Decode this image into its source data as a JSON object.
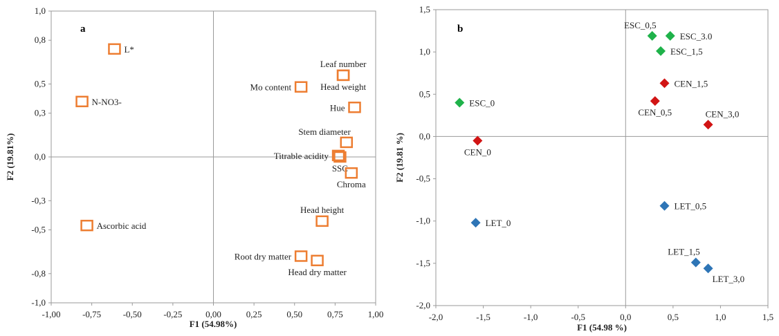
{
  "chart_data": [
    {
      "type": "scatter",
      "panel": "a",
      "xlabel": "F1 (54.98%)",
      "ylabel": "F2 (19.81%)",
      "xlim": [
        -1.0,
        1.0
      ],
      "ylim": [
        -1.0,
        1.0
      ],
      "x_ticks": [
        -1.0,
        -0.75,
        -0.5,
        -0.25,
        0.0,
        0.25,
        0.5,
        0.75,
        1.0
      ],
      "x_tick_labels": [
        "-1,00",
        "-0,75",
        "-0,50",
        "-0,25",
        "0,00",
        "0,25",
        "0,50",
        "0,75",
        "1,00"
      ],
      "y_ticks": [
        -1.0,
        -0.8,
        -0.5,
        -0.3,
        0.0,
        0.3,
        0.5,
        0.8,
        1.0
      ],
      "y_tick_labels": [
        "-1,0",
        "-0,8",
        "-0,5",
        "-0,3",
        "0,0",
        "0,3",
        "0,5",
        "0,8",
        "1,0"
      ],
      "marker": "open-square",
      "marker_color": "#ED7D31",
      "points": [
        {
          "label": "L*",
          "x": -0.61,
          "y": 0.74,
          "label_side": "right"
        },
        {
          "label": "N-NO3-",
          "x": -0.81,
          "y": 0.38,
          "label_side": "right"
        },
        {
          "label": "Ascorbic acid",
          "x": -0.78,
          "y": -0.47,
          "label_side": "right"
        },
        {
          "label": "Leaf number",
          "x": 0.8,
          "y": 0.56,
          "label_side": "above"
        },
        {
          "label": "Head weight",
          "x": 0.8,
          "y": 0.56,
          "label_side": "below"
        },
        {
          "label": "Mo content",
          "x": 0.54,
          "y": 0.48,
          "label_side": "left"
        },
        {
          "label": "Hue",
          "x": 0.87,
          "y": 0.34,
          "label_side": "left"
        },
        {
          "label": "Stem diameter",
          "x": 0.82,
          "y": 0.1,
          "label_side": "above-left"
        },
        {
          "label": "Titrable acidity",
          "x": 0.77,
          "y": 0.01,
          "label_side": "left"
        },
        {
          "label": "SSC",
          "x": 0.78,
          "y": 0.0,
          "label_side": "below"
        },
        {
          "label": "Chroma",
          "x": 0.85,
          "y": -0.11,
          "label_side": "below"
        },
        {
          "label": "Head height",
          "x": 0.67,
          "y": -0.44,
          "label_side": "above"
        },
        {
          "label": "Root dry matter",
          "x": 0.54,
          "y": -0.68,
          "label_side": "left"
        },
        {
          "label": "Head dry matter",
          "x": 0.64,
          "y": -0.71,
          "label_side": "below"
        }
      ]
    },
    {
      "type": "scatter",
      "panel": "b",
      "xlabel": "F1 (54.98 %)",
      "ylabel": "F2 (19.81 %)",
      "xlim": [
        -2.0,
        1.5
      ],
      "ylim": [
        -2.0,
        1.5
      ],
      "x_ticks": [
        -2.0,
        -1.5,
        -1.0,
        -0.5,
        0.0,
        0.5,
        1.0,
        1.5
      ],
      "x_tick_labels": [
        "-2,0",
        "-1,5",
        "-1,0",
        "-0,5",
        "0,0",
        "0,5",
        "1,0",
        "1,5"
      ],
      "y_ticks": [
        -2.0,
        -1.5,
        -1.0,
        -0.5,
        0.0,
        0.5,
        1.0,
        1.5
      ],
      "y_tick_labels": [
        "-2,0",
        "-1,5",
        "-1,0",
        "-0,5",
        "0,0",
        "0,5",
        "1,0",
        "1,5"
      ],
      "marker": "filled-diamond",
      "series_colors": {
        "ESC": "#1FB24A",
        "CEN": "#D11414",
        "LET": "#2E75B6"
      },
      "points": [
        {
          "label": "ESC_0,5",
          "x": 0.28,
          "y": 1.19,
          "group": "ESC",
          "label_side": "above-left"
        },
        {
          "label": "ESC_3.0",
          "x": 0.47,
          "y": 1.19,
          "group": "ESC",
          "label_side": "right"
        },
        {
          "label": "ESC_1,5",
          "x": 0.37,
          "y": 1.01,
          "group": "ESC",
          "label_side": "right"
        },
        {
          "label": "ESC_0",
          "x": -1.75,
          "y": 0.4,
          "group": "ESC",
          "label_side": "right"
        },
        {
          "label": "CEN_1,5",
          "x": 0.41,
          "y": 0.63,
          "group": "CEN",
          "label_side": "right"
        },
        {
          "label": "CEN_0,5",
          "x": 0.31,
          "y": 0.42,
          "group": "CEN",
          "label_side": "below"
        },
        {
          "label": "CEN_3,0",
          "x": 0.87,
          "y": 0.14,
          "group": "CEN",
          "label_side": "above-right"
        },
        {
          "label": "CEN_0",
          "x": -1.56,
          "y": -0.05,
          "group": "CEN",
          "label_side": "below"
        },
        {
          "label": "LET_0,5",
          "x": 0.41,
          "y": -0.82,
          "group": "LET",
          "label_side": "right"
        },
        {
          "label": "LET_0",
          "x": -1.58,
          "y": -1.02,
          "group": "LET",
          "label_side": "right"
        },
        {
          "label": "LET_1,5",
          "x": 0.74,
          "y": -1.49,
          "group": "LET",
          "label_side": "above-left"
        },
        {
          "label": "LET_3,0",
          "x": 0.87,
          "y": -1.56,
          "group": "LET",
          "label_side": "below-right"
        }
      ]
    }
  ]
}
